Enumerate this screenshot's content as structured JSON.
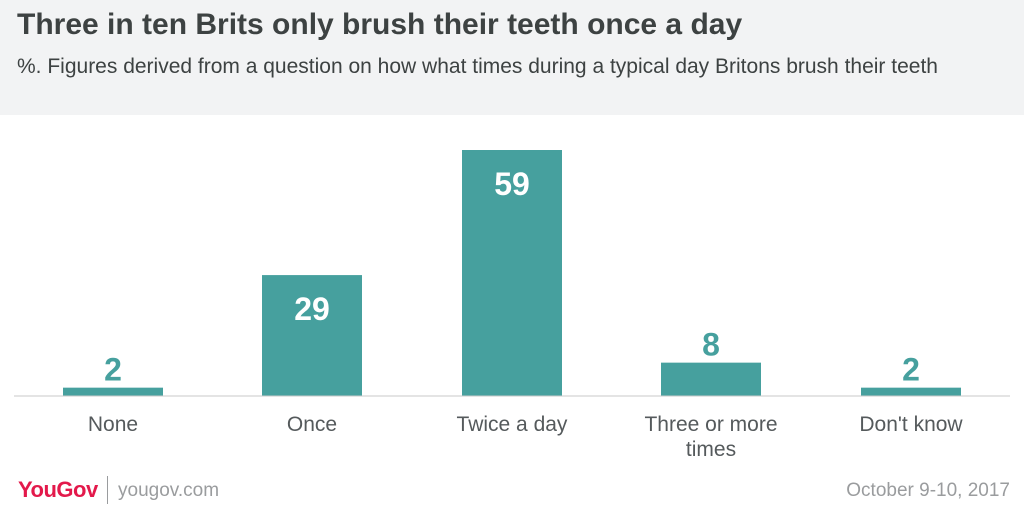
{
  "title": "Three in ten Brits only brush their teeth once a day",
  "subtitle": "%. Figures derived from a question on how what times during a typical day Britons brush their teeth",
  "footer": {
    "logo": "YouGov",
    "site": "yougov.com",
    "date": "October 9-10, 2017"
  },
  "colors": {
    "bar": "#46a09e",
    "label_inside": "#ffffff",
    "label_outside": "#46a09e",
    "baseline": "#c8caca",
    "brand": "#e3194b"
  },
  "chart_data": {
    "type": "bar",
    "categories": [
      "None",
      "Once",
      "Twice a day",
      "Three or more times",
      "Don't know"
    ],
    "category_lines": [
      [
        "None"
      ],
      [
        "Once"
      ],
      [
        "Twice a day"
      ],
      [
        "Three or more",
        "times"
      ],
      [
        "Don't know"
      ]
    ],
    "values": [
      2,
      29,
      59,
      8,
      2
    ],
    "ylim": [
      0,
      60
    ],
    "grid": false,
    "legend": "none"
  }
}
